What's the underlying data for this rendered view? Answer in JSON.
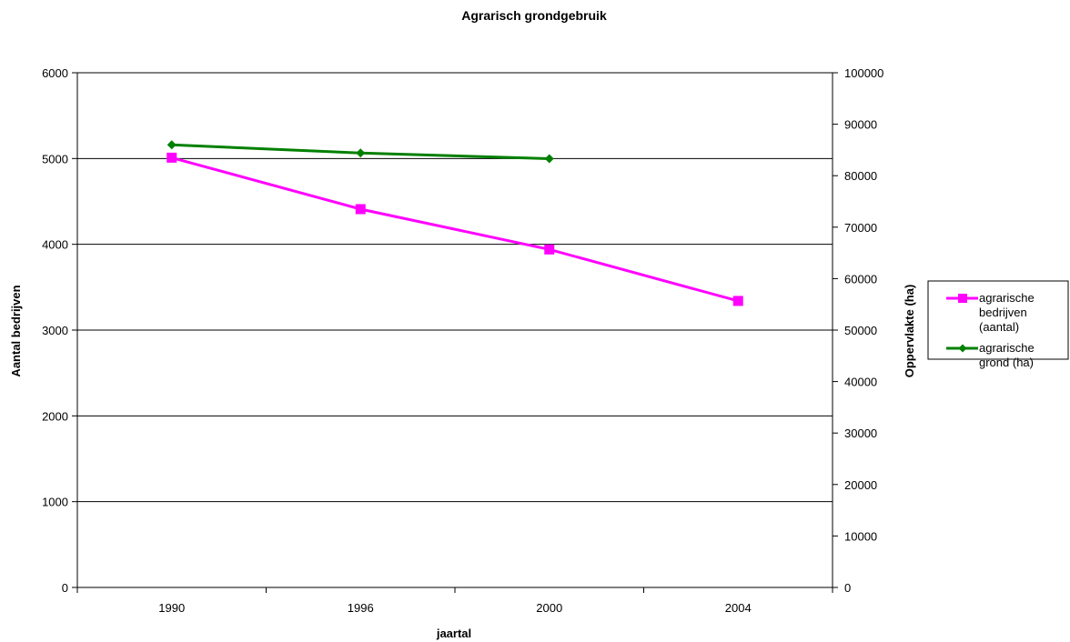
{
  "chart_data": {
    "type": "line",
    "title": "Agrarisch grondgebruik",
    "xlabel": "jaartal",
    "ylabel_left": "Aantal bedrijven",
    "ylabel_right": "Oppervlakte (ha)",
    "categories": [
      "1990",
      "1996",
      "2000",
      "2004"
    ],
    "ylim_left": [
      0,
      6000
    ],
    "ylim_right": [
      0,
      100000
    ],
    "yticks_left": [
      "0",
      "1000",
      "2000",
      "3000",
      "4000",
      "5000",
      "6000"
    ],
    "yticks_right": [
      "0",
      "10000",
      "20000",
      "30000",
      "40000",
      "50000",
      "60000",
      "70000",
      "80000",
      "90000",
      "100000"
    ],
    "grid": true,
    "legend_position": "right",
    "series": [
      {
        "name": "agrarische bedrijven (aantal)",
        "legend_lines": [
          "agrarische",
          "bedrijven",
          "(aantal)"
        ],
        "axis": "left",
        "color": "#ff00ff",
        "marker": "square",
        "values": [
          5010,
          4410,
          3940,
          3340
        ]
      },
      {
        "name": "agrarische grond (ha)",
        "legend_lines": [
          "agrarische",
          "grond (ha)"
        ],
        "axis": "right",
        "color": "#008000",
        "marker": "diamond",
        "values": [
          86000,
          84400,
          83300,
          null
        ]
      }
    ]
  }
}
